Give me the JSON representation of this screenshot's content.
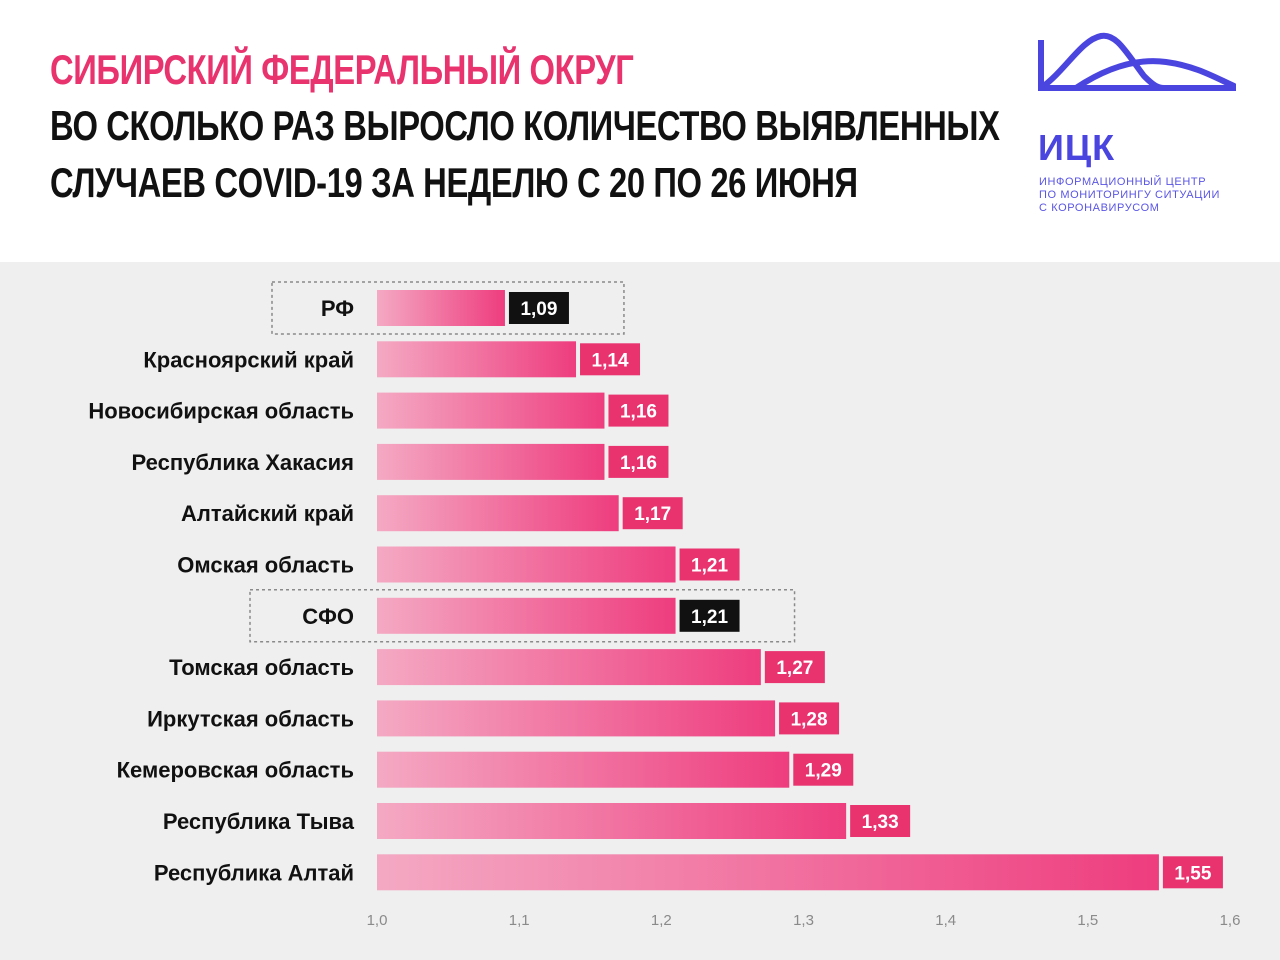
{
  "header": {
    "title_line1": "СИБИРСКИЙ ФЕДЕРАЛЬНЫЙ ОКРУГ",
    "title_line2": "ВО СКОЛЬКО РАЗ ВЫРОСЛО КОЛИЧЕСТВО ВЫЯВЛЕННЫХ",
    "title_line3": "СЛУЧАЕВ COVID-19 ЗА НЕДЕЛЮ С 20 ПО 26 ИЮНЯ"
  },
  "logo": {
    "abbr": "ИЦК",
    "line1": "ИНФОРМАЦИОННЫЙ ЦЕНТР",
    "line2": "ПО МОНИТОРИНГУ СИТУАЦИИ",
    "line3": "С КОРОНАВИРУСОМ",
    "color": "#4b45e0"
  },
  "colors": {
    "accent": "#e8336f",
    "bar_start": "#f4a9c3",
    "bar_end": "#ee3d7e",
    "highlight_label_bg": "#111111",
    "background": "#efefef"
  },
  "chart_data": {
    "type": "bar",
    "orientation": "horizontal",
    "title": "СИБИРСКИЙ ФЕДЕРАЛЬНЫЙ ОКРУГ",
    "subtitle": "ВО СКОЛЬКО РАЗ ВЫРОСЛО КОЛИЧЕСТВО ВЫЯВЛЕННЫХ СЛУЧАЕВ COVID-19 ЗА НЕДЕЛЮ С 20 ПО 26 ИЮНЯ",
    "categories": [
      "РФ",
      "Красноярский край",
      "Новосибирская область",
      "Республика Хакасия",
      "Алтайский край",
      "Омская область",
      "СФО",
      "Томская область",
      "Иркутская область",
      "Кемеровская область",
      "Республика Тыва",
      "Республика Алтай"
    ],
    "values": [
      1.09,
      1.14,
      1.16,
      1.16,
      1.17,
      1.21,
      1.21,
      1.27,
      1.28,
      1.29,
      1.33,
      1.55
    ],
    "value_labels": [
      "1,09",
      "1,14",
      "1,16",
      "1,16",
      "1,17",
      "1,21",
      "1,21",
      "1,27",
      "1,28",
      "1,29",
      "1,33",
      "1,55"
    ],
    "highlighted": [
      "РФ",
      "СФО"
    ],
    "xlim": [
      1.0,
      1.6
    ],
    "xticks": [
      "1,0",
      "1,1",
      "1,2",
      "1,3",
      "1,4",
      "1,5",
      "1,6"
    ],
    "grid": false,
    "legend": "none"
  }
}
